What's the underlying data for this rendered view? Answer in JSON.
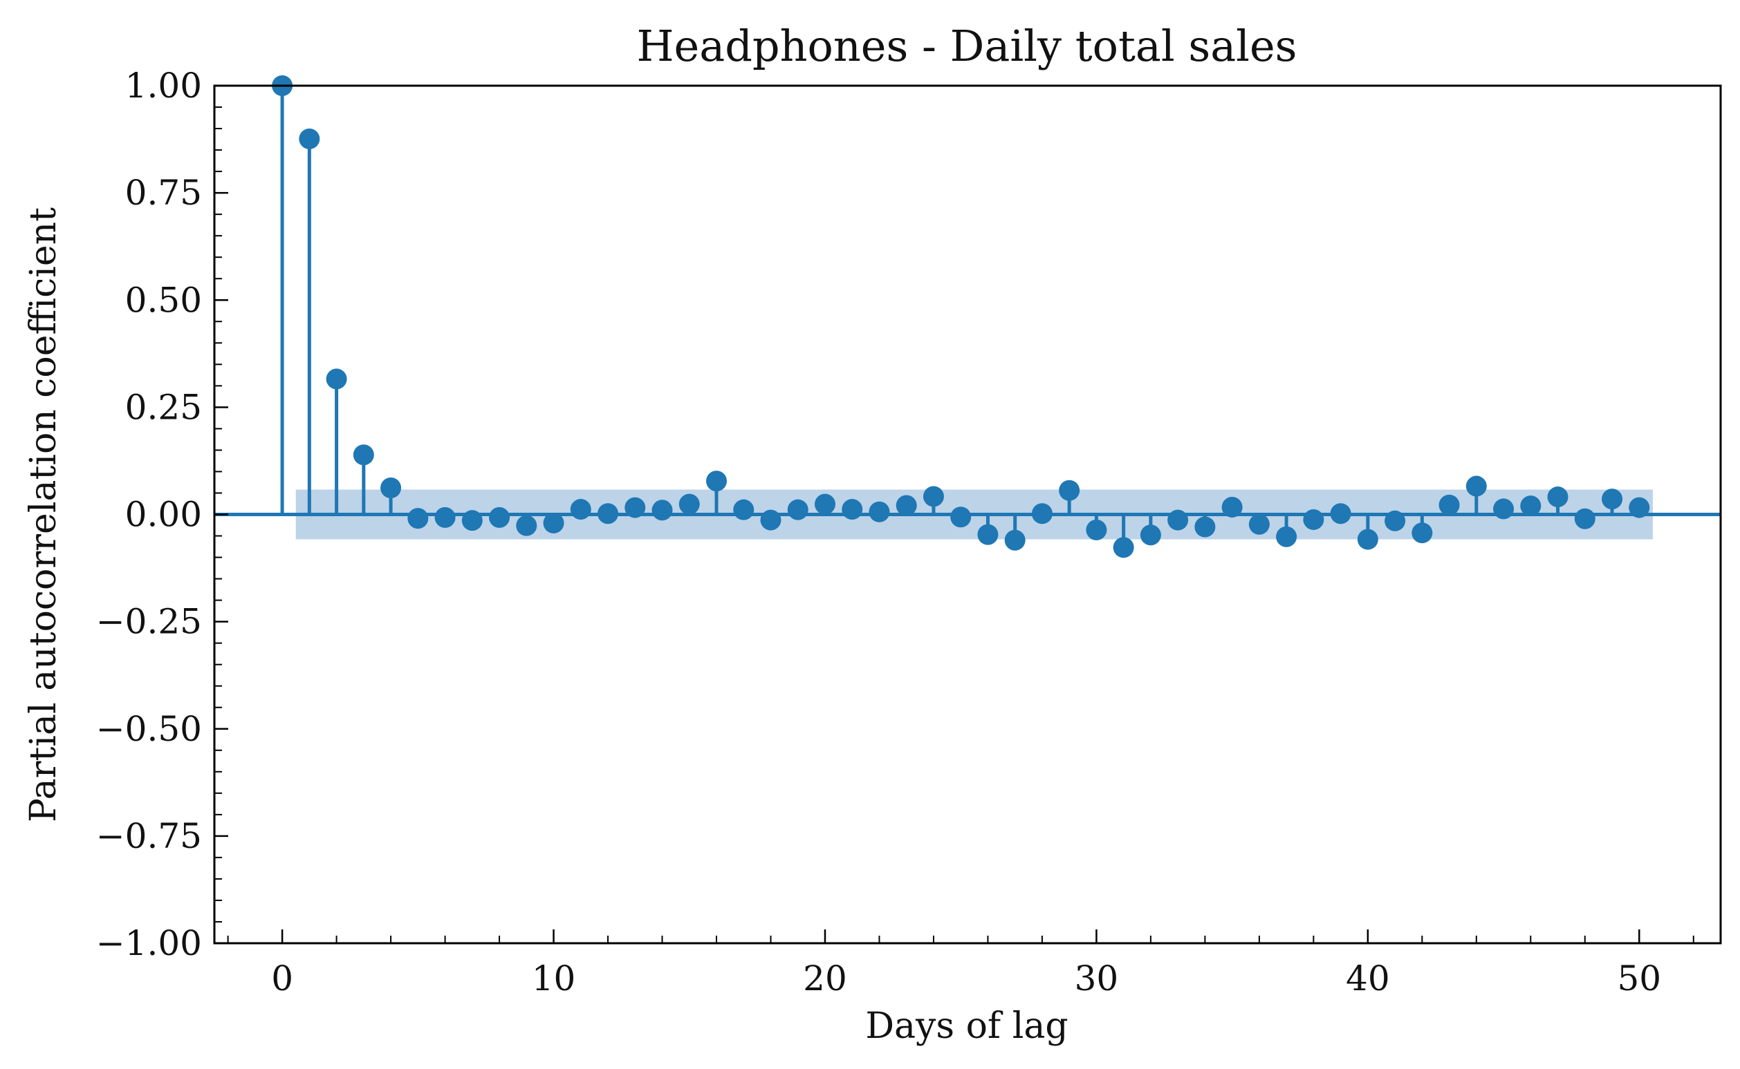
{
  "chart_data": {
    "type": "stem",
    "title": "Headphones - Daily total sales",
    "xlabel": "Days of lag",
    "ylabel": "Partial autocorrelation coefficient",
    "xlim": [
      -2.5,
      53
    ],
    "ylim": [
      -1.0,
      1.0
    ],
    "xticks": [
      0,
      10,
      20,
      30,
      40,
      50
    ],
    "xtick_labels": [
      "0",
      "10",
      "20",
      "30",
      "40",
      "50"
    ],
    "yticks": [
      1.0,
      0.75,
      0.5,
      0.25,
      0.0,
      -0.25,
      -0.5,
      -0.75,
      -1.0
    ],
    "ytick_labels": [
      "1.00",
      "0.75",
      "0.50",
      "0.25",
      "0.00",
      "−0.25",
      "−0.50",
      "−0.75",
      "−1.00"
    ],
    "confidence_band": {
      "from_lag": 0.5,
      "to_lag": 50.5,
      "lower": -0.058,
      "upper": 0.058
    },
    "grid": false,
    "colors": {
      "stem": "#1f77b4",
      "band": "#bcd3e8"
    },
    "series": [
      {
        "x": [
          0,
          1,
          2,
          3,
          4,
          5,
          6,
          7,
          8,
          9,
          10,
          11,
          12,
          13,
          14,
          15,
          16,
          17,
          18,
          19,
          20,
          21,
          22,
          23,
          24,
          25,
          26,
          27,
          28,
          29,
          30,
          31,
          32,
          33,
          34,
          35,
          36,
          37,
          38,
          39,
          40,
          41,
          42,
          43,
          44,
          45,
          46,
          47,
          48,
          49,
          50
        ],
        "values": [
          1.0,
          0.876,
          0.316,
          0.139,
          0.062,
          -0.009,
          -0.007,
          -0.014,
          -0.007,
          -0.026,
          -0.02,
          0.012,
          0.002,
          0.016,
          0.01,
          0.024,
          0.078,
          0.011,
          -0.013,
          0.011,
          0.024,
          0.012,
          0.006,
          0.021,
          0.042,
          -0.006,
          -0.047,
          -0.06,
          0.002,
          0.056,
          -0.036,
          -0.077,
          -0.048,
          -0.013,
          -0.029,
          0.017,
          -0.023,
          -0.052,
          -0.012,
          0.002,
          -0.058,
          -0.015,
          -0.043,
          0.022,
          0.066,
          0.013,
          0.02,
          0.041,
          -0.01,
          0.036,
          0.016
        ]
      }
    ]
  }
}
